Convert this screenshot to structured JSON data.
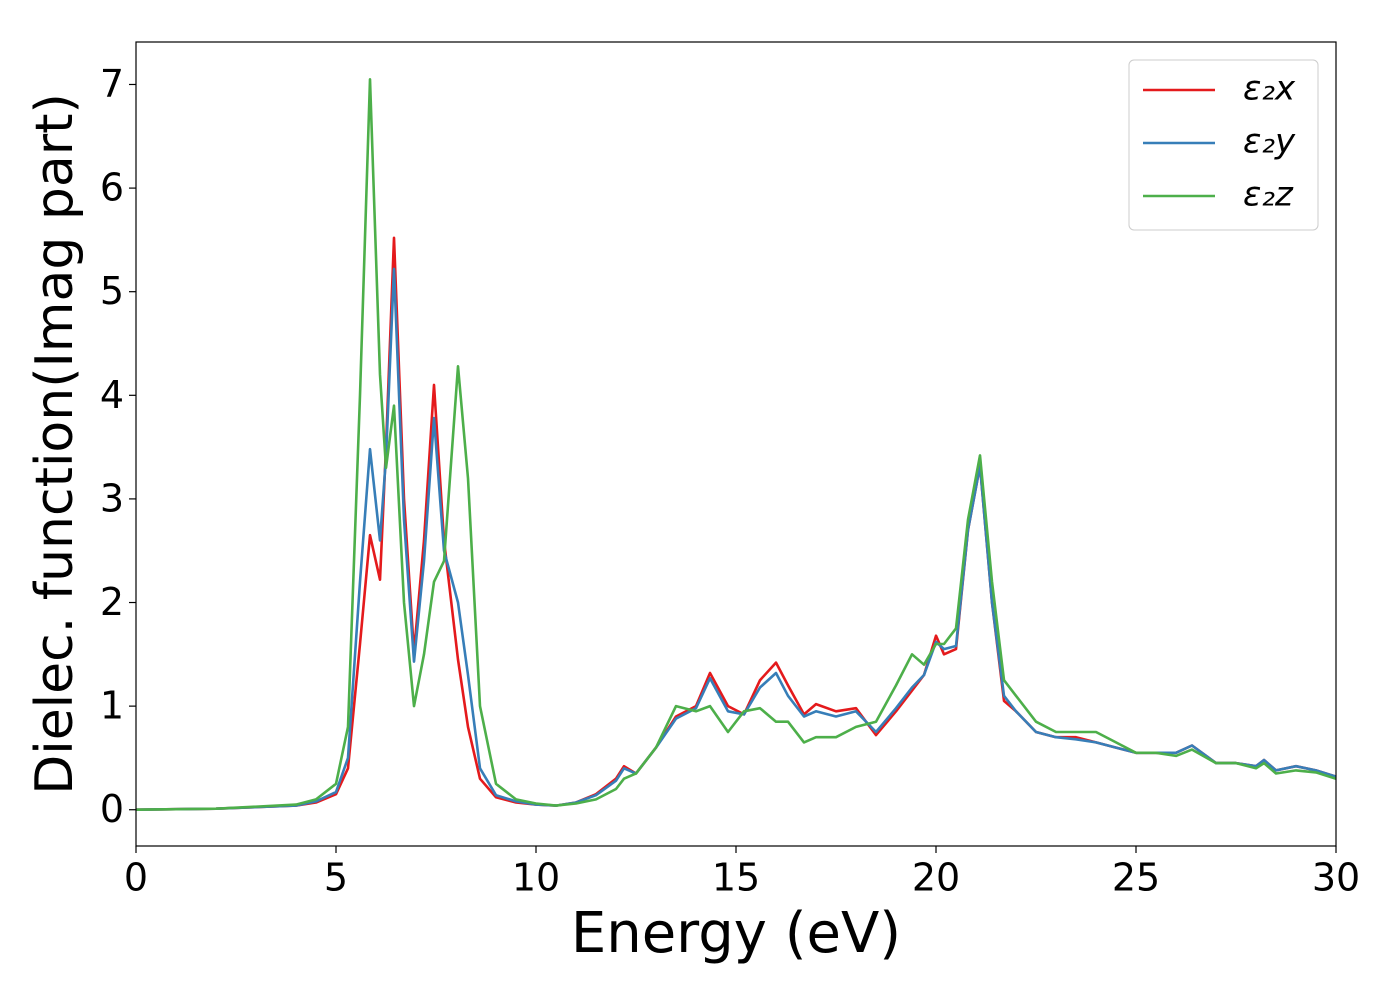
{
  "chart_data": {
    "type": "line",
    "x_label": "Energy (eV)",
    "y_label": "Dielec. function(Imag part)",
    "x": [
      0,
      2,
      4,
      4.5,
      5,
      5.3,
      5.6,
      5.85,
      6.1,
      6.25,
      6.45,
      6.7,
      6.95,
      7.2,
      7.45,
      7.7,
      8.05,
      8.3,
      8.6,
      9,
      9.5,
      10,
      10.5,
      11,
      11.5,
      12,
      12.2,
      12.5,
      13,
      13.5,
      14,
      14.35,
      14.8,
      15.2,
      15.6,
      16,
      16.3,
      16.7,
      17,
      17.5,
      18,
      18.5,
      19,
      19.4,
      19.7,
      20,
      20.2,
      20.5,
      20.8,
      21.1,
      21.4,
      21.7,
      22,
      22.5,
      23,
      23.5,
      24,
      24.5,
      25,
      25.5,
      26,
      26.4,
      27,
      27.5,
      28,
      28.2,
      28.5,
      29,
      29.5,
      30
    ],
    "series": [
      {
        "name": "ε₂x",
        "color": "#e41a1c",
        "values": [
          0,
          0.01,
          0.04,
          0.07,
          0.15,
          0.4,
          1.6,
          2.65,
          2.22,
          3.5,
          5.52,
          3.0,
          1.52,
          2.6,
          4.1,
          2.6,
          1.45,
          0.8,
          0.3,
          0.12,
          0.07,
          0.05,
          0.04,
          0.07,
          0.15,
          0.3,
          0.42,
          0.35,
          0.6,
          0.9,
          1.0,
          1.32,
          1.0,
          0.92,
          1.25,
          1.42,
          1.2,
          0.92,
          1.02,
          0.95,
          0.98,
          0.72,
          0.95,
          1.15,
          1.3,
          1.68,
          1.5,
          1.55,
          2.7,
          3.32,
          2.0,
          1.05,
          0.95,
          0.75,
          0.7,
          0.7,
          0.65,
          0.6,
          0.55,
          0.55,
          0.55,
          0.62,
          0.45,
          0.45,
          0.42,
          0.48,
          0.38,
          0.42,
          0.38,
          0.32
        ]
      },
      {
        "name": "ε₂y",
        "color": "#377eb8",
        "values": [
          0,
          0.01,
          0.04,
          0.08,
          0.17,
          0.5,
          2.2,
          3.48,
          2.6,
          3.4,
          5.22,
          2.8,
          1.43,
          2.4,
          3.78,
          2.5,
          2.0,
          1.3,
          0.4,
          0.14,
          0.08,
          0.05,
          0.04,
          0.07,
          0.14,
          0.28,
          0.4,
          0.35,
          0.6,
          0.88,
          0.98,
          1.27,
          0.95,
          0.92,
          1.18,
          1.32,
          1.1,
          0.9,
          0.95,
          0.9,
          0.95,
          0.75,
          0.98,
          1.18,
          1.3,
          1.62,
          1.55,
          1.58,
          2.7,
          3.32,
          2.0,
          1.1,
          0.95,
          0.75,
          0.7,
          0.68,
          0.65,
          0.6,
          0.55,
          0.55,
          0.55,
          0.62,
          0.45,
          0.45,
          0.42,
          0.48,
          0.38,
          0.42,
          0.38,
          0.32
        ]
      },
      {
        "name": "ε₂z",
        "color": "#4daf4a",
        "values": [
          0,
          0.01,
          0.05,
          0.1,
          0.25,
          0.8,
          4.0,
          7.05,
          4.2,
          3.3,
          3.9,
          2.0,
          1.0,
          1.5,
          2.2,
          2.4,
          4.28,
          3.2,
          1.0,
          0.25,
          0.1,
          0.06,
          0.04,
          0.06,
          0.1,
          0.2,
          0.3,
          0.35,
          0.6,
          1.0,
          0.95,
          1.0,
          0.75,
          0.95,
          0.98,
          0.85,
          0.85,
          0.65,
          0.7,
          0.7,
          0.8,
          0.85,
          1.2,
          1.5,
          1.4,
          1.6,
          1.6,
          1.75,
          2.8,
          3.42,
          2.2,
          1.25,
          1.1,
          0.85,
          0.75,
          0.75,
          0.75,
          0.65,
          0.55,
          0.55,
          0.52,
          0.58,
          0.45,
          0.45,
          0.4,
          0.45,
          0.35,
          0.38,
          0.36,
          0.3
        ]
      }
    ],
    "xlim": [
      0,
      30
    ],
    "xticks": [
      0,
      5,
      10,
      15,
      20,
      25,
      30
    ],
    "ylim": [
      -0.35,
      7.41
    ],
    "yticks": [
      0,
      1,
      2,
      3,
      4,
      5,
      6,
      7
    ],
    "grid": false,
    "legend": "upper right"
  }
}
